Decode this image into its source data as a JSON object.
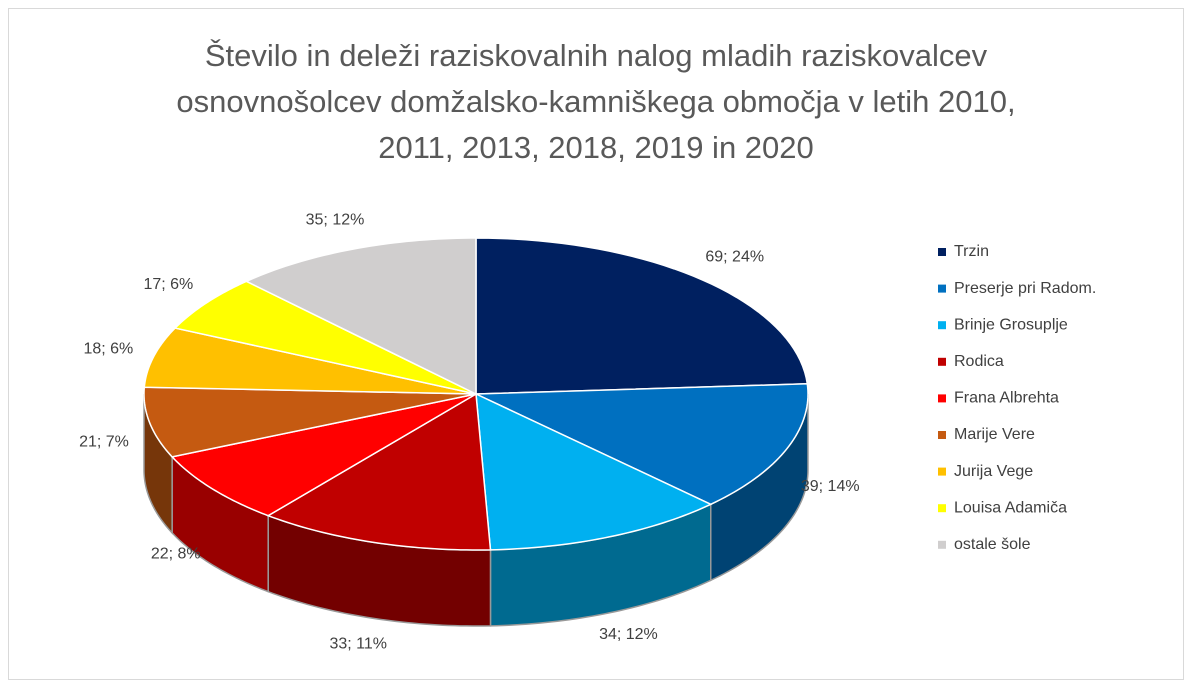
{
  "chart_data": {
    "type": "pie3d",
    "title": [
      "Število in deleži raziskovalnih nalog mladih raziskovalcev",
      "osnovnošolcev domžalsko-kamniškega območja v letih 2010,",
      "2011, 2013, 2018, 2019 in 2020"
    ],
    "categories": [
      "Trzin",
      "Preserje pri Radom.",
      "Brinje Grosuplje",
      "Rodica",
      "Frana Albrehta",
      "Marije Vere",
      "Jurija Vege",
      "Louisa Adamiča",
      "ostale šole"
    ],
    "values": [
      69,
      39,
      34,
      33,
      22,
      21,
      18,
      17,
      35
    ],
    "value_labels": [
      "69; 24%",
      "39; 14%",
      "34; 12%",
      "33; 11%",
      "22; 8%",
      "21; 7%",
      "18; 6%",
      "17; 6%",
      "35; 12%"
    ],
    "colors": [
      "#002060",
      "#0070c0",
      "#00b0f0",
      "#c00000",
      "#ff0000",
      "#c55a11",
      "#ffc000",
      "#ffff00",
      "#d0cece"
    ],
    "legend": "right"
  }
}
